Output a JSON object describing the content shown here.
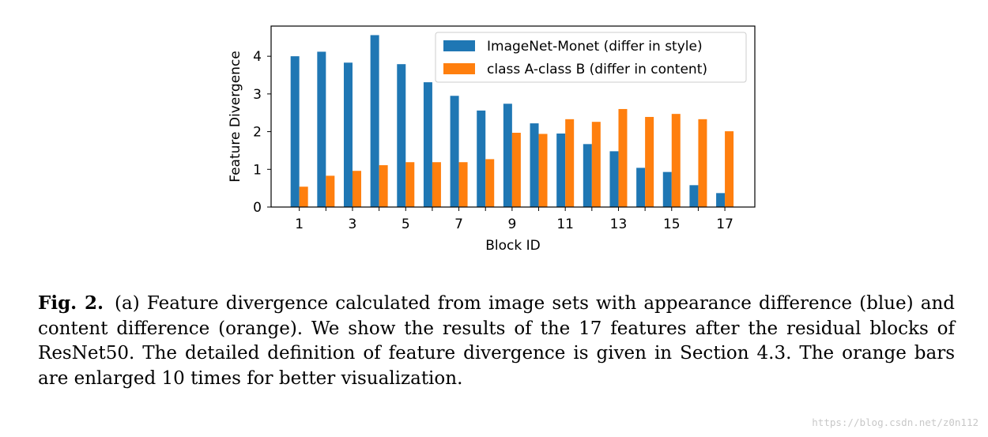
{
  "chart_data": {
    "type": "bar",
    "title": "",
    "xlabel": "Block ID",
    "ylabel": "Feature Divergence",
    "ylim": [
      0,
      4.8
    ],
    "yticks": [
      0,
      1,
      2,
      3,
      4
    ],
    "categories": [
      1,
      2,
      3,
      4,
      5,
      6,
      7,
      8,
      9,
      10,
      11,
      12,
      13,
      14,
      15,
      16,
      17
    ],
    "xtick_labels": [
      "1",
      "3",
      "5",
      "7",
      "9",
      "11",
      "13",
      "15",
      "17"
    ],
    "legend_position": "top-right",
    "grid": false,
    "series": [
      {
        "name": "ImageNet-Monet (differ in style)",
        "color": "#1f77b4",
        "values": [
          4.0,
          4.12,
          3.83,
          4.56,
          3.79,
          3.31,
          2.95,
          2.56,
          2.74,
          2.22,
          1.95,
          1.67,
          1.48,
          1.04,
          0.93,
          0.58,
          0.37
        ]
      },
      {
        "name": "class A-class B (differ in content)",
        "color": "#ff7f0e",
        "values": [
          0.54,
          0.83,
          0.96,
          1.11,
          1.19,
          1.19,
          1.19,
          1.27,
          1.97,
          1.94,
          2.33,
          2.26,
          2.6,
          2.39,
          2.47,
          2.33,
          2.01
        ]
      }
    ]
  },
  "caption": {
    "label": "Fig. 2.",
    "text": "(a) Feature divergence calculated from image sets with appearance difference (blue) and content difference (orange). We show the results of the 17 features after the residual blocks of ResNet50. The detailed definition of feature divergence is given in Section 4.3. The orange bars are enlarged 10 times for better visualization."
  },
  "watermark": "https://blog.csdn.net/z0n112"
}
